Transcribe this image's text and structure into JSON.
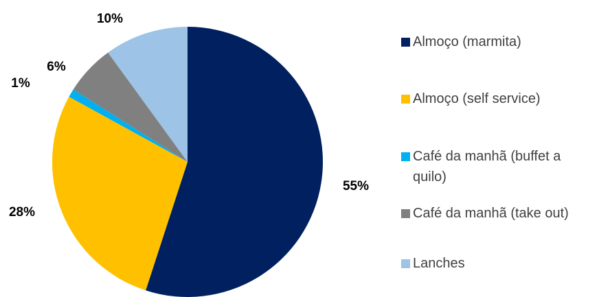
{
  "chart_data": {
    "type": "pie",
    "categories": [
      "Almoço (marmita)",
      "Almoço (self service)",
      "Café da manhã (buffet a quilo)",
      "Café da manhã (take out)",
      "Lanches"
    ],
    "values": [
      55,
      28,
      1,
      6,
      10
    ],
    "value_labels": [
      "55%",
      "28%",
      "1%",
      "6%",
      "10%"
    ],
    "colors": [
      "#002060",
      "#ffc000",
      "#00b0f0",
      "#808080",
      "#9dc3e6"
    ],
    "legend": "right"
  }
}
